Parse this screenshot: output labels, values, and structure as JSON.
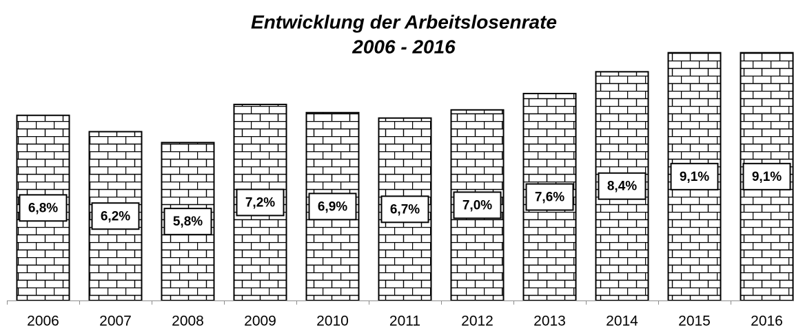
{
  "chart_data": {
    "type": "bar",
    "title": "Entwicklung der Arbeitslosenrate",
    "subtitle": "2006 - 2016",
    "categories": [
      "2006",
      "2007",
      "2008",
      "2009",
      "2010",
      "2011",
      "2012",
      "2013",
      "2014",
      "2015",
      "2016"
    ],
    "values": [
      6.8,
      6.2,
      5.8,
      7.2,
      6.9,
      6.7,
      7.0,
      7.6,
      8.4,
      9.1,
      9.1
    ],
    "value_labels": [
      "6,8%",
      "6,2%",
      "5,8%",
      "7,2%",
      "6,9%",
      "6,7%",
      "7,0%",
      "7,6%",
      "8,4%",
      "9,1%",
      "9,1%"
    ],
    "ylim": [
      0,
      10
    ],
    "color": "#000000"
  }
}
